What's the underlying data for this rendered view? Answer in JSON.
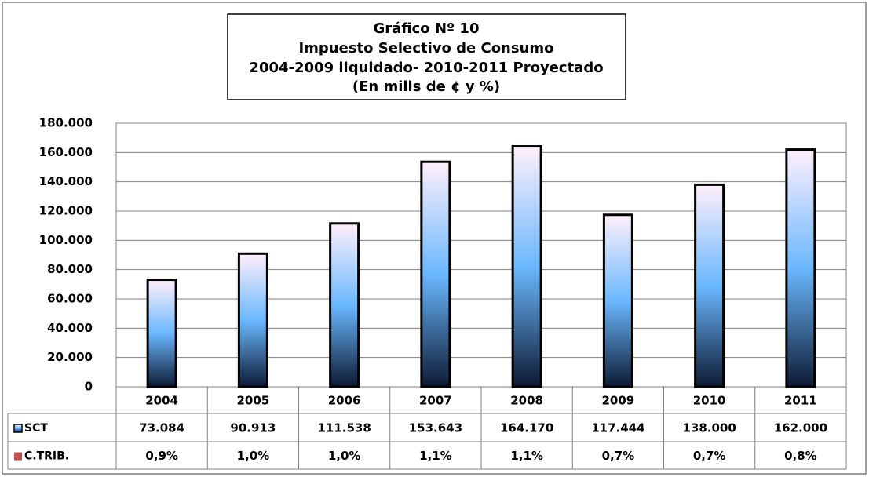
{
  "chart_data": {
    "type": "bar",
    "title": [
      "Gráfico Nº 10",
      "Impuesto Selectivo de Consumo",
      "2004-2009 liquidado- 2010-2011 Proyectado",
      "(En mills de ¢ y %)"
    ],
    "categories": [
      "2004",
      "2005",
      "2006",
      "2007",
      "2008",
      "2009",
      "2010",
      "2011"
    ],
    "series": [
      {
        "name": "SCT",
        "color": "#6ab8ff",
        "values": [
          73084,
          90913,
          111538,
          153643,
          164170,
          117444,
          138000,
          162000
        ],
        "value_labels": [
          "73.084",
          "90.913",
          "111.538",
          "153.643",
          "164.170",
          "117.444",
          "138.000",
          "162.000"
        ]
      },
      {
        "name": "C.TRIB.",
        "color": "#c0504d",
        "values": [
          0.9,
          1.0,
          1.0,
          1.1,
          1.1,
          0.7,
          0.7,
          0.8
        ],
        "value_labels": [
          "0,9%",
          "1,0%",
          "1,0%",
          "1,1%",
          "1,1%",
          "0,7%",
          "0,7%",
          "0,8%"
        ],
        "bars": false
      }
    ],
    "ylim": [
      0,
      180000
    ],
    "yticks": [
      0,
      {
        "value": 20000,
        "label": "20.000"
      },
      {
        "value": 40000,
        "label": "40.000"
      },
      {
        "value": 60000,
        "label": "60.000"
      },
      {
        "value": 80000,
        "label": "80.000"
      },
      {
        "value": 100000,
        "label": "100.000"
      },
      {
        "value": 120000,
        "label": "120.000"
      },
      {
        "value": 140000,
        "label": "140.000"
      },
      {
        "value": 160000,
        "label": "160.000"
      },
      {
        "value": 180000,
        "label": "180.000"
      }
    ],
    "grid": true,
    "data_table": true
  }
}
